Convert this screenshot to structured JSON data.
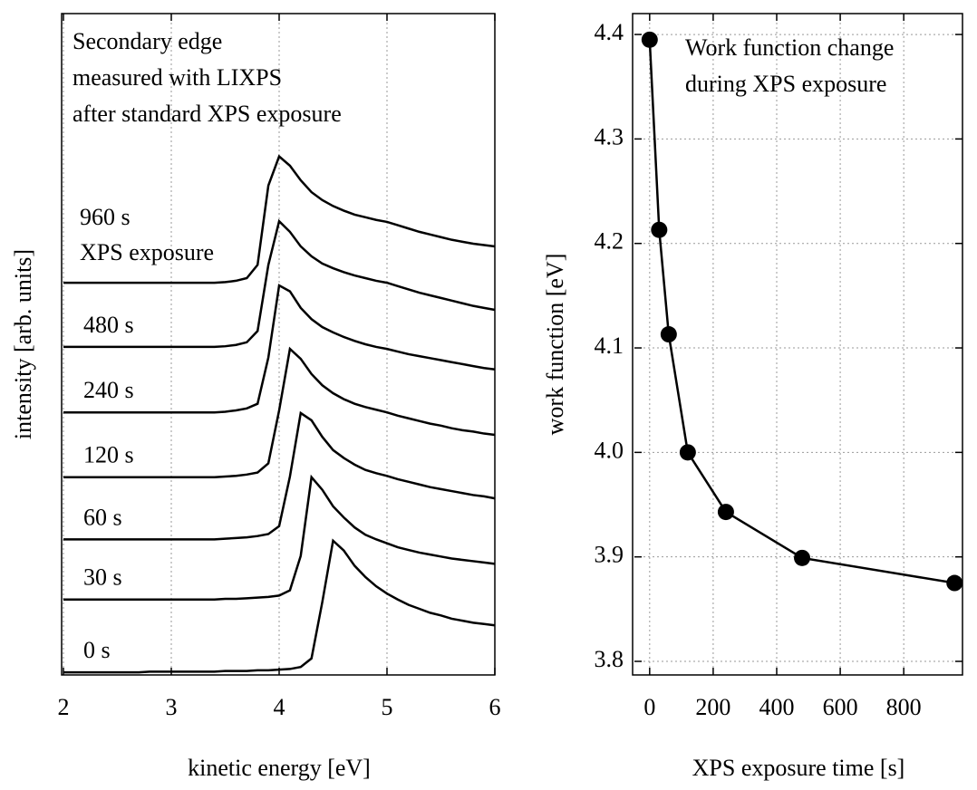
{
  "chart_data": [
    {
      "type": "line",
      "annotation": [
        "Secondary edge",
        "measured with LIXPS",
        "after standard XPS exposure"
      ],
      "x_label": "kinetic energy [eV]",
      "y_label": "intensity [arb. units]",
      "x": [
        2,
        2.1,
        2.2,
        2.3,
        2.4,
        2.5,
        2.6,
        2.7,
        2.8,
        2.9,
        3,
        3.1,
        3.2,
        3.3,
        3.4,
        3.5,
        3.6,
        3.7,
        3.8,
        3.9,
        4,
        4.1,
        4.2,
        4.3,
        4.4,
        4.5,
        4.6,
        4.7,
        4.8,
        4.9,
        5,
        5.1,
        5.2,
        5.3,
        5.4,
        5.5,
        5.6,
        5.7,
        5.8,
        5.9,
        6
      ],
      "series": [
        {
          "name": "0 s",
          "color": "#000000",
          "values": [
            0.4,
            0.4,
            0.4,
            0.4,
            0.4,
            0.4,
            0.4,
            0.4,
            0.5,
            0.5,
            0.5,
            0.5,
            0.5,
            0.5,
            0.5,
            0.6,
            0.6,
            0.6,
            0.7,
            0.7,
            0.8,
            0.9,
            1.2,
            2.5,
            11.0,
            20.3,
            18.8,
            16.5,
            14.8,
            13.4,
            12.3,
            11.4,
            10.6,
            10.0,
            9.4,
            9.0,
            8.5,
            8.2,
            7.9,
            7.7,
            7.5
          ]
        },
        {
          "name": "30 s",
          "color": "#000000",
          "values": [
            11.4,
            11.4,
            11.4,
            11.4,
            11.4,
            11.4,
            11.4,
            11.4,
            11.4,
            11.4,
            11.4,
            11.4,
            11.4,
            11.4,
            11.4,
            11.5,
            11.5,
            11.6,
            11.7,
            11.8,
            12.0,
            12.8,
            18.0,
            29.9,
            28.0,
            25.5,
            23.8,
            22.3,
            21.2,
            20.5,
            19.9,
            19.3,
            18.9,
            18.5,
            18.2,
            17.9,
            17.6,
            17.4,
            17.2,
            17.0,
            16.8
          ]
        },
        {
          "name": "60 s",
          "color": "#000000",
          "values": [
            20.5,
            20.5,
            20.5,
            20.5,
            20.5,
            20.5,
            20.5,
            20.5,
            20.5,
            20.5,
            20.5,
            20.5,
            20.5,
            20.5,
            20.5,
            20.6,
            20.7,
            20.8,
            21.0,
            21.3,
            22.5,
            30.0,
            39.6,
            38.5,
            36.0,
            34.0,
            32.8,
            31.8,
            31.0,
            30.5,
            30.1,
            29.6,
            29.2,
            28.8,
            28.4,
            28.1,
            27.8,
            27.5,
            27.2,
            27.0,
            26.7
          ]
        },
        {
          "name": "120 s",
          "color": "#000000",
          "values": [
            29.9,
            29.9,
            29.9,
            29.9,
            29.9,
            29.9,
            29.9,
            29.9,
            29.9,
            29.9,
            29.9,
            29.9,
            29.9,
            29.9,
            29.9,
            30.0,
            30.1,
            30.3,
            30.6,
            32.0,
            40.0,
            49.3,
            47.8,
            45.5,
            43.8,
            42.6,
            41.7,
            41.0,
            40.5,
            40.1,
            39.7,
            39.2,
            38.8,
            38.4,
            38.0,
            37.7,
            37.3,
            37.0,
            36.8,
            36.5,
            36.3
          ]
        },
        {
          "name": "240 s",
          "color": "#000000",
          "values": [
            39.7,
            39.7,
            39.7,
            39.7,
            39.7,
            39.7,
            39.7,
            39.7,
            39.7,
            39.7,
            39.7,
            39.7,
            39.7,
            39.7,
            39.7,
            39.8,
            40.0,
            40.3,
            41.0,
            48.0,
            58.9,
            58.0,
            55.5,
            53.8,
            52.6,
            51.8,
            51.1,
            50.5,
            50.0,
            49.6,
            49.3,
            48.9,
            48.5,
            48.2,
            47.9,
            47.6,
            47.3,
            47.0,
            46.7,
            46.4,
            46.2
          ]
        },
        {
          "name": "480 s",
          "color": "#000000",
          "values": [
            49.6,
            49.6,
            49.6,
            49.6,
            49.6,
            49.6,
            49.6,
            49.6,
            49.6,
            49.6,
            49.6,
            49.6,
            49.6,
            49.6,
            49.6,
            49.7,
            49.9,
            50.3,
            52.0,
            62.0,
            68.6,
            67.0,
            64.8,
            63.3,
            62.2,
            61.5,
            60.9,
            60.4,
            60.0,
            59.6,
            59.3,
            58.8,
            58.3,
            57.8,
            57.4,
            57.0,
            56.6,
            56.2,
            55.8,
            55.5,
            55.2
          ]
        },
        {
          "name": "960 s",
          "note": "XPS exposure",
          "color": "#000000",
          "values": [
            59.3,
            59.3,
            59.3,
            59.3,
            59.3,
            59.3,
            59.3,
            59.3,
            59.3,
            59.3,
            59.3,
            59.3,
            59.3,
            59.3,
            59.3,
            59.4,
            59.6,
            60.0,
            62.0,
            74.0,
            78.4,
            77.0,
            74.8,
            73.0,
            71.8,
            70.9,
            70.2,
            69.6,
            69.2,
            68.8,
            68.5,
            68.0,
            67.5,
            67.0,
            66.6,
            66.2,
            65.8,
            65.5,
            65.2,
            65.0,
            64.8
          ]
        }
      ],
      "xlim": [
        2,
        6
      ],
      "xticks": [
        2,
        3,
        4,
        5,
        6
      ],
      "ylim": [
        0,
        100
      ],
      "grid": "x"
    },
    {
      "type": "line",
      "annotation": [
        "Work function change",
        "during XPS exposure"
      ],
      "x_label": "XPS exposure time [s]",
      "y_label": "work function [eV]",
      "x": [
        0,
        30,
        60,
        120,
        240,
        480,
        960
      ],
      "values": [
        4.395,
        4.213,
        4.113,
        4.0,
        3.943,
        3.899,
        3.875
      ],
      "color": "#000000",
      "markers": true,
      "xlim": [
        -48,
        985
      ],
      "xticks": [
        0,
        200,
        400,
        600,
        800
      ],
      "ylim": [
        3.787,
        4.42
      ],
      "yticks": [
        3.8,
        3.9,
        {
          "value": 4,
          "label": "4.0"
        },
        4.1,
        4.2,
        4.3,
        4.4
      ],
      "grid": "both"
    }
  ]
}
